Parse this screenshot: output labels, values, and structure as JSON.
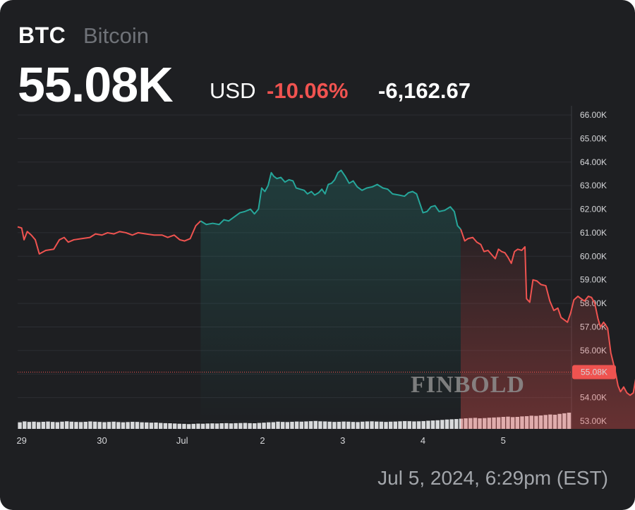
{
  "header": {
    "ticker": "BTC",
    "name": "Bitcoin",
    "price": "55.08K",
    "currency": "USD",
    "change_pct": "-10.06%",
    "change_abs": "-6,162.67"
  },
  "timestamp": "Jul 5, 2024, 6:29pm (EST)",
  "watermark": "FINBOLD",
  "colors": {
    "background": "#1e1f22",
    "up": "#26a69a",
    "down": "#ef5350",
    "volume": "#d9dadc",
    "last_price_label": "#ef5350"
  },
  "chart_data": {
    "type": "area",
    "title": "",
    "xlabel": "",
    "ylabel": "",
    "ylim": [
      52800,
      66300
    ],
    "y_ticks": [
      "66.00K",
      "65.00K",
      "64.00K",
      "63.00K",
      "62.00K",
      "61.00K",
      "60.00K",
      "59.00K",
      "58.00K",
      "57.00K",
      "56.00K",
      "55.00K",
      "54.00K",
      "53.00K"
    ],
    "y_tick_values": [
      66000,
      65000,
      64000,
      63000,
      62000,
      61000,
      60000,
      59000,
      58000,
      57000,
      56000,
      55000,
      54000,
      53000
    ],
    "x_ticks": [
      "29",
      "30",
      "Jul",
      "2",
      "3",
      "4",
      "5"
    ],
    "x_tick_days": [
      0,
      1,
      2,
      3,
      4,
      5,
      6
    ],
    "x_domain_days": [
      -0.05,
      6.85
    ],
    "last_price": 55080,
    "last_price_label": "55.08K",
    "grid": true,
    "series": [
      {
        "segment": "red",
        "points": [
          [
            -0.05,
            61250
          ],
          [
            0.0,
            61200
          ],
          [
            0.03,
            60700
          ],
          [
            0.07,
            61050
          ],
          [
            0.12,
            60900
          ],
          [
            0.17,
            60700
          ],
          [
            0.22,
            60100
          ],
          [
            0.3,
            60250
          ],
          [
            0.4,
            60300
          ],
          [
            0.47,
            60700
          ],
          [
            0.53,
            60800
          ],
          [
            0.58,
            60600
          ],
          [
            0.65,
            60700
          ],
          [
            0.75,
            60750
          ],
          [
            0.85,
            60800
          ],
          [
            0.92,
            60950
          ],
          [
            1.0,
            60900
          ],
          [
            1.07,
            61000
          ],
          [
            1.15,
            60950
          ],
          [
            1.22,
            61050
          ],
          [
            1.3,
            61000
          ],
          [
            1.38,
            60900
          ],
          [
            1.45,
            61000
          ],
          [
            1.55,
            60950
          ],
          [
            1.65,
            60900
          ],
          [
            1.75,
            60900
          ],
          [
            1.82,
            60800
          ],
          [
            1.9,
            60900
          ],
          [
            1.97,
            60700
          ],
          [
            2.03,
            60650
          ],
          [
            2.1,
            60750
          ],
          [
            2.17,
            61300
          ],
          [
            2.23,
            61500
          ]
        ]
      },
      {
        "segment": "green",
        "points": [
          [
            2.23,
            61500
          ],
          [
            2.3,
            61350
          ],
          [
            2.38,
            61400
          ],
          [
            2.46,
            61350
          ],
          [
            2.52,
            61550
          ],
          [
            2.58,
            61500
          ],
          [
            2.66,
            61700
          ],
          [
            2.72,
            61850
          ],
          [
            2.78,
            61900
          ],
          [
            2.85,
            62000
          ],
          [
            2.9,
            61800
          ],
          [
            2.95,
            62000
          ],
          [
            2.99,
            62900
          ],
          [
            3.03,
            62750
          ],
          [
            3.07,
            63000
          ],
          [
            3.11,
            63550
          ],
          [
            3.14,
            63400
          ],
          [
            3.18,
            63300
          ],
          [
            3.23,
            63350
          ],
          [
            3.28,
            63150
          ],
          [
            3.33,
            63250
          ],
          [
            3.38,
            63200
          ],
          [
            3.42,
            62900
          ],
          [
            3.47,
            62850
          ],
          [
            3.52,
            62800
          ],
          [
            3.56,
            62650
          ],
          [
            3.61,
            62750
          ],
          [
            3.65,
            62600
          ],
          [
            3.7,
            62700
          ],
          [
            3.74,
            62850
          ],
          [
            3.78,
            62650
          ],
          [
            3.82,
            63050
          ],
          [
            3.86,
            63100
          ],
          [
            3.9,
            63250
          ],
          [
            3.94,
            63550
          ],
          [
            3.98,
            63650
          ],
          [
            4.03,
            63400
          ],
          [
            4.08,
            63100
          ],
          [
            4.13,
            63200
          ],
          [
            4.18,
            62950
          ],
          [
            4.24,
            62800
          ],
          [
            4.3,
            62900
          ],
          [
            4.37,
            62950
          ],
          [
            4.43,
            63050
          ],
          [
            4.5,
            62900
          ],
          [
            4.56,
            62850
          ],
          [
            4.62,
            62650
          ],
          [
            4.7,
            62600
          ],
          [
            4.77,
            62550
          ],
          [
            4.82,
            62700
          ],
          [
            4.87,
            62750
          ],
          [
            4.92,
            62650
          ],
          [
            4.96,
            62250
          ],
          [
            5.0,
            61850
          ],
          [
            5.05,
            61900
          ],
          [
            5.1,
            62100
          ],
          [
            5.15,
            62150
          ],
          [
            5.2,
            61900
          ],
          [
            5.27,
            61950
          ],
          [
            5.34,
            62100
          ],
          [
            5.39,
            61900
          ],
          [
            5.43,
            61300
          ],
          [
            5.47,
            61150
          ]
        ]
      },
      {
        "segment": "red",
        "points": [
          [
            5.47,
            61150
          ],
          [
            5.52,
            60650
          ],
          [
            5.56,
            60750
          ],
          [
            5.62,
            60800
          ],
          [
            5.67,
            60600
          ],
          [
            5.72,
            60500
          ],
          [
            5.76,
            60200
          ],
          [
            5.81,
            60250
          ],
          [
            5.86,
            60050
          ],
          [
            5.9,
            59900
          ],
          [
            5.94,
            60300
          ],
          [
            5.98,
            60200
          ],
          [
            6.02,
            60150
          ],
          [
            6.06,
            59950
          ],
          [
            6.1,
            59700
          ],
          [
            6.14,
            60200
          ],
          [
            6.18,
            60300
          ],
          [
            6.23,
            60250
          ],
          [
            6.27,
            60400
          ],
          [
            6.29,
            58200
          ],
          [
            6.33,
            58050
          ],
          [
            6.37,
            59000
          ],
          [
            6.42,
            58950
          ],
          [
            6.47,
            58800
          ],
          [
            6.53,
            58750
          ],
          [
            6.58,
            58100
          ],
          [
            6.63,
            57700
          ],
          [
            6.68,
            57800
          ],
          [
            6.72,
            57400
          ],
          [
            6.76,
            57300
          ],
          [
            6.8,
            57200
          ],
          [
            6.84,
            57600
          ],
          [
            6.88,
            58150
          ],
          [
            6.93,
            58300
          ],
          [
            6.97,
            58200
          ],
          [
            7.01,
            58100
          ],
          [
            7.06,
            58300
          ],
          [
            7.1,
            58250
          ],
          [
            7.14,
            58000
          ],
          [
            7.18,
            57350
          ],
          [
            7.21,
            57000
          ],
          [
            7.25,
            57200
          ],
          [
            7.3,
            56950
          ],
          [
            7.34,
            55900
          ],
          [
            7.39,
            55200
          ],
          [
            7.43,
            54500
          ],
          [
            7.46,
            54250
          ],
          [
            7.5,
            54450
          ],
          [
            7.54,
            54200
          ],
          [
            7.58,
            54100
          ],
          [
            7.62,
            54200
          ],
          [
            7.66,
            55000
          ],
          [
            7.7,
            55350
          ],
          [
            7.74,
            55250
          ],
          [
            7.78,
            55080
          ]
        ]
      }
    ],
    "volume": [
      0.55,
      0.62,
      0.58,
      0.6,
      0.57,
      0.59,
      0.61,
      0.58,
      0.56,
      0.6,
      0.63,
      0.6,
      0.58,
      0.57,
      0.59,
      0.62,
      0.6,
      0.58,
      0.56,
      0.58,
      0.6,
      0.57,
      0.55,
      0.57,
      0.59,
      0.58,
      0.55,
      0.54,
      0.52,
      0.53,
      0.5,
      0.48,
      0.47,
      0.45,
      0.43,
      0.42,
      0.4,
      0.42,
      0.44,
      0.43,
      0.45,
      0.46,
      0.45,
      0.47,
      0.48,
      0.46,
      0.48,
      0.49,
      0.5,
      0.48,
      0.47,
      0.5,
      0.52,
      0.55,
      0.56,
      0.6,
      0.58,
      0.57,
      0.59,
      0.61,
      0.6,
      0.62,
      0.64,
      0.66,
      0.63,
      0.62,
      0.6,
      0.58,
      0.59,
      0.61,
      0.6,
      0.58,
      0.57,
      0.6,
      0.62,
      0.63,
      0.61,
      0.6,
      0.58,
      0.6,
      0.61,
      0.63,
      0.65,
      0.64,
      0.62,
      0.63,
      0.65,
      0.68,
      0.7,
      0.72,
      0.75,
      0.78,
      0.8,
      0.82,
      0.85,
      0.88,
      0.9,
      0.92,
      0.88,
      0.9,
      0.93,
      0.95,
      0.97,
      1.0,
      1.02,
      0.98,
      1.0,
      1.04,
      1.06,
      1.1,
      1.08,
      1.12,
      1.16,
      1.2,
      1.18,
      1.25,
      1.3,
      1.35
    ]
  }
}
